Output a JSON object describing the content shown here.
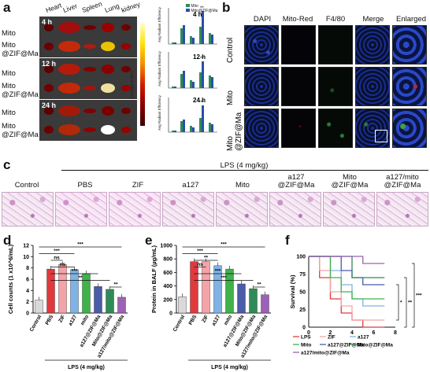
{
  "panel_labels": {
    "a": "a",
    "b": "b",
    "c": "c",
    "d": "d",
    "e": "e",
    "f": "f"
  },
  "panel_a": {
    "organs": [
      "Heart",
      "Liver",
      "Spleen",
      "Lung",
      "kidney"
    ],
    "times": [
      "4 h",
      "12 h",
      "24 h"
    ],
    "rows": [
      "Mito",
      "Mito\n@ZIF@Ma",
      "Mito",
      "Mito\n@ZIF@Ma",
      "Mito",
      "Mito\n@ZIF@Ma"
    ],
    "colorbar_label": "Radiant Efficiency",
    "bar_ylabel": "Avg Radiant Efficiency",
    "bar_legend": [
      "Mito",
      "Mito@ZIF@Ma"
    ],
    "bar_sig": [
      "**",
      "**",
      "***"
    ],
    "colors": {
      "mito": "#2e8b57",
      "mitozif": "#2a4fa8"
    }
  },
  "panel_b": {
    "columns": [
      "DAPI",
      "Mito-Red",
      "F4/80",
      "Merge",
      "Enlarged"
    ],
    "rows": [
      "Control",
      "Mito",
      "Mito\n@ZIF@Ma"
    ]
  },
  "panel_c": {
    "lps_label": "LPS (4 mg/kg)",
    "columns": [
      "Control",
      "PBS",
      "ZIF",
      "a127",
      "Mito",
      "a127\n@ZIF@Ma",
      "Mito\n@ZIF@Ma",
      "a127/mito\n@ZIF@Ma"
    ]
  },
  "chart_data": [
    {
      "type": "bar",
      "panel": "d",
      "categories": [
        "Control",
        "PBS",
        "ZIF",
        "a127",
        "mito",
        "a127@ZIF@Ma",
        "Mito@ZIF@Ma",
        "a127/mito@ZIF@Ma"
      ],
      "values": [
        2.3,
        7.8,
        8.6,
        7.7,
        7.0,
        4.7,
        4.2,
        2.8
      ],
      "ylabel": "Cell counts (1 x10^6/mL)",
      "ylim": [
        0,
        12
      ],
      "yticks": [
        "0",
        "2",
        "4",
        "6",
        "8",
        "10",
        "12"
      ],
      "xgroup_label": "LPS (4 mg/kg)",
      "significance": [
        "***",
        "***",
        "ns",
        "ns",
        "***",
        "**",
        "**"
      ],
      "colors": [
        "#d9d9d9",
        "#e0393e",
        "#f4a3a8",
        "#7fb2e5",
        "#3fb24a",
        "#4a5ba8",
        "#2e8b57",
        "#9b62b5"
      ]
    },
    {
      "type": "bar",
      "panel": "e",
      "categories": [
        "Control",
        "PBS",
        "ZIF",
        "a127",
        "mito",
        "a127@ZIF@Ma",
        "Mito@ZIF@Ma",
        "a127/mito@ZIF@Ma"
      ],
      "values": [
        240,
        760,
        760,
        700,
        650,
        430,
        360,
        270
      ],
      "ylabel": "Protein in BALF (µg/mL)",
      "ylim": [
        0,
        1000
      ],
      "yticks": [
        "0",
        "200",
        "400",
        "600",
        "800",
        "1000"
      ],
      "xgroup_label": "LPS (4 mg/kg)",
      "significance": [
        "***",
        "***",
        "**",
        "ns",
        "***",
        "***",
        "**"
      ],
      "colors": [
        "#d9d9d9",
        "#e0393e",
        "#f4a3a8",
        "#7fb2e5",
        "#3fb24a",
        "#4a5ba8",
        "#2e8b57",
        "#9b62b5"
      ]
    },
    {
      "type": "line",
      "panel": "f",
      "ylabel": "Survival (%)",
      "ylim": [
        0,
        100
      ],
      "xlim": [
        0,
        8
      ],
      "yticks": [
        "0",
        "25",
        "50",
        "75",
        "100"
      ],
      "xticks": [
        "0",
        "2",
        "4",
        "6",
        "8"
      ],
      "series": [
        {
          "name": "LPS",
          "color": "#e0393e",
          "x": [
            0,
            1,
            1,
            2,
            2,
            3,
            3,
            4,
            4,
            5,
            5,
            7
          ],
          "y": [
            100,
            100,
            70,
            70,
            40,
            40,
            20,
            20,
            10,
            10,
            0,
            0
          ]
        },
        {
          "name": "ZIF",
          "color": "#f4a3a8",
          "x": [
            0,
            1,
            1,
            2,
            2,
            3,
            3,
            4,
            4,
            7
          ],
          "y": [
            100,
            100,
            80,
            80,
            50,
            50,
            30,
            30,
            10,
            10
          ]
        },
        {
          "name": "a127",
          "color": "#7fb2e5",
          "x": [
            0,
            2,
            2,
            3,
            3,
            4,
            4,
            5,
            5,
            7
          ],
          "y": [
            100,
            100,
            80,
            80,
            60,
            60,
            40,
            40,
            30,
            30
          ]
        },
        {
          "name": "Mito",
          "color": "#3fb24a",
          "x": [
            0,
            2,
            2,
            3,
            3,
            4,
            4,
            7
          ],
          "y": [
            100,
            100,
            70,
            70,
            50,
            50,
            40,
            40
          ]
        },
        {
          "name": "a127@ZIF@Ma",
          "color": "#4a5ba8",
          "x": [
            0,
            3,
            3,
            4,
            4,
            5,
            5,
            7
          ],
          "y": [
            100,
            100,
            80,
            80,
            70,
            70,
            60,
            60
          ]
        },
        {
          "name": "Mito@ZIF@Ma",
          "color": "#2e8b57",
          "x": [
            0,
            4,
            4,
            7
          ],
          "y": [
            100,
            100,
            70,
            70
          ]
        },
        {
          "name": "a127/mito@ZIF@Ma",
          "color": "#9b62b5",
          "x": [
            0,
            5,
            5,
            7
          ],
          "y": [
            100,
            100,
            90,
            90
          ]
        }
      ],
      "significance": [
        "*",
        "**",
        "***"
      ]
    }
  ]
}
